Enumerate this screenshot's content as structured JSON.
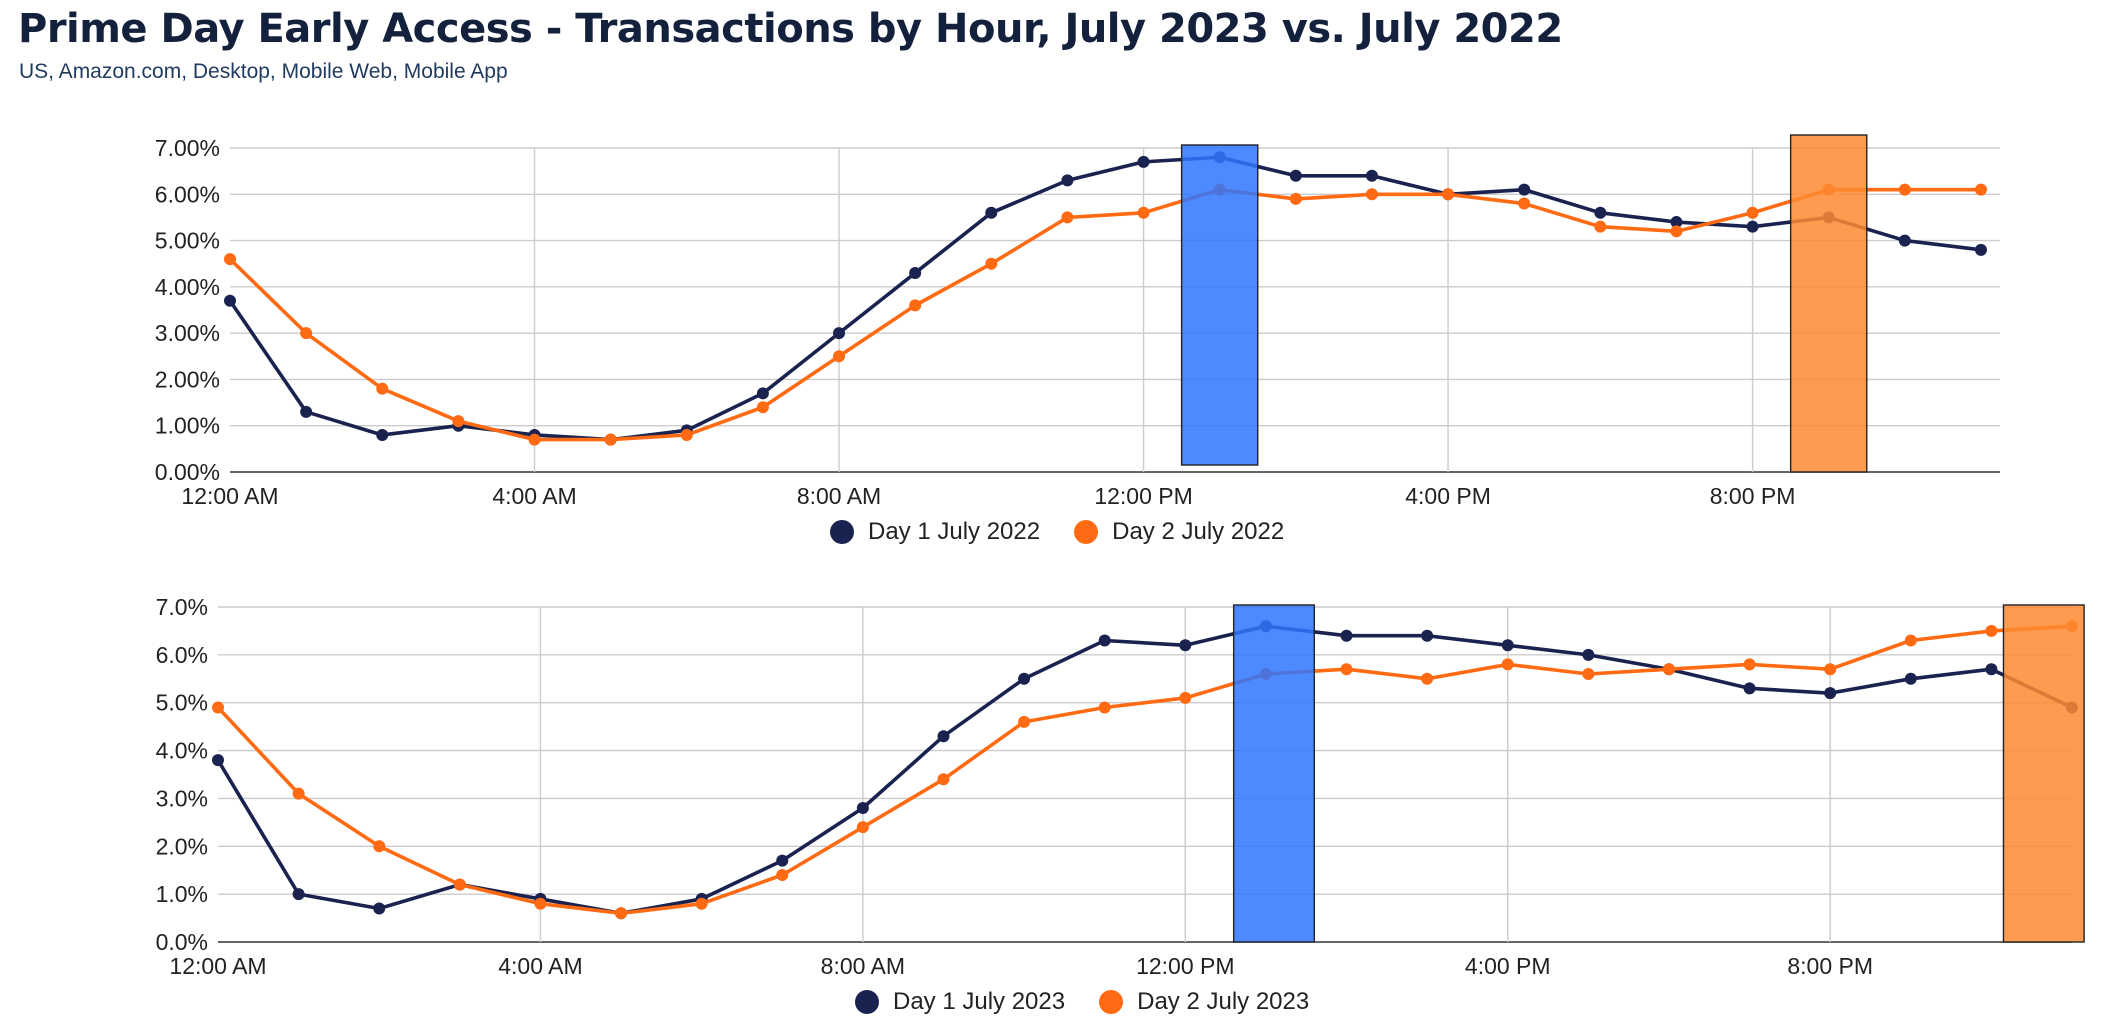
{
  "header": {
    "title": "Prime Day Early Access - Transactions by Hour, July 2023 vs. July 2022",
    "subtitle": "US, Amazon.com, Desktop, Mobile Web, Mobile App"
  },
  "colors": {
    "day1": "#1a2350",
    "day2": "#ff6a13",
    "highlight_day1": "#2f75ff",
    "highlight_day2": "#ff8a33",
    "grid": "#cccccc"
  },
  "chart_data": [
    {
      "type": "line",
      "title": "",
      "xlabel": "",
      "ylabel": "",
      "x": [
        0,
        1,
        2,
        3,
        4,
        5,
        6,
        7,
        8,
        9,
        10,
        11,
        12,
        13,
        14,
        15,
        16,
        17,
        18,
        19,
        20,
        21,
        22,
        23
      ],
      "xtick_positions": [
        0,
        4,
        8,
        12,
        16,
        20
      ],
      "xtick_labels": [
        "12:00 AM",
        "4:00 AM",
        "8:00 AM",
        "12:00 PM",
        "4:00 PM",
        "8:00 PM"
      ],
      "ytick_values": [
        0,
        1,
        2,
        3,
        4,
        5,
        6,
        7
      ],
      "ytick_labels": [
        "0.00%",
        "1.00%",
        "2.00%",
        "3.00%",
        "4.00%",
        "5.00%",
        "6.00%",
        "7.00%"
      ],
      "ylim": [
        0,
        7
      ],
      "grid": true,
      "legend_position": "bottom",
      "series": [
        {
          "name": "Day 1 July 2022",
          "color": "#1a2350",
          "values": [
            3.7,
            1.3,
            0.8,
            1.0,
            0.8,
            0.7,
            0.9,
            1.7,
            3.0,
            4.3,
            5.6,
            6.3,
            6.7,
            6.8,
            6.4,
            6.4,
            6.0,
            6.1,
            5.6,
            5.4,
            5.3,
            5.5,
            5.0,
            4.8
          ]
        },
        {
          "name": "Day 2 July 2022",
          "color": "#ff6a13",
          "values": [
            4.6,
            3.0,
            1.8,
            1.1,
            0.7,
            0.7,
            0.8,
            1.4,
            2.5,
            3.6,
            4.5,
            5.5,
            5.6,
            6.1,
            5.9,
            6.0,
            6.0,
            5.8,
            5.3,
            5.2,
            5.6,
            6.1,
            6.1,
            6.1
          ]
        }
      ],
      "highlights": [
        {
          "color": "#2f75ff",
          "x_start": 12.5,
          "x_end": 13.5
        },
        {
          "color": "#ff8a33",
          "x_start": 20.5,
          "x_end": 21.5
        }
      ]
    },
    {
      "type": "line",
      "title": "",
      "xlabel": "",
      "ylabel": "",
      "x": [
        0,
        1,
        2,
        3,
        4,
        5,
        6,
        7,
        8,
        9,
        10,
        11,
        12,
        13,
        14,
        15,
        16,
        17,
        18,
        19,
        20,
        21,
        22,
        23
      ],
      "xtick_positions": [
        0,
        4,
        8,
        12,
        16,
        20
      ],
      "xtick_labels": [
        "12:00 AM",
        "4:00 AM",
        "8:00 AM",
        "12:00 PM",
        "4:00 PM",
        "8:00 PM"
      ],
      "ytick_values": [
        0,
        1,
        2,
        3,
        4,
        5,
        6,
        7
      ],
      "ytick_labels": [
        "0.0%",
        "1.0%",
        "2.0%",
        "3.0%",
        "4.0%",
        "5.0%",
        "6.0%",
        "7.0%"
      ],
      "ylim": [
        0,
        7
      ],
      "grid": true,
      "legend_position": "bottom",
      "series": [
        {
          "name": "Day 1 July 2023",
          "color": "#1a2350",
          "values": [
            3.8,
            1.0,
            0.7,
            1.2,
            0.9,
            0.6,
            0.9,
            1.7,
            2.8,
            4.3,
            5.5,
            6.3,
            6.2,
            6.6,
            6.4,
            6.4,
            6.2,
            6.0,
            5.7,
            5.3,
            5.2,
            5.5,
            5.7,
            4.9
          ]
        },
        {
          "name": "Day 2 July 2023",
          "color": "#ff6a13",
          "values": [
            4.9,
            3.1,
            2.0,
            1.2,
            0.8,
            0.6,
            0.8,
            1.4,
            2.4,
            3.4,
            4.6,
            4.9,
            5.1,
            5.6,
            5.7,
            5.5,
            5.8,
            5.6,
            5.7,
            5.8,
            5.7,
            6.3,
            6.5,
            6.6
          ]
        }
      ],
      "highlights": [
        {
          "color": "#2f75ff",
          "x_start": 12.6,
          "x_end": 13.6
        },
        {
          "color": "#ff8a33",
          "x_start": 22.15,
          "x_end": 23.15
        }
      ]
    }
  ],
  "legends": {
    "top": [
      {
        "label": "Day 1 July 2022",
        "color": "#1a2350"
      },
      {
        "label": "Day 2 July 2022",
        "color": "#ff6a13"
      }
    ],
    "bottom": [
      {
        "label": "Day 1 July 2023",
        "color": "#1a2350"
      },
      {
        "label": "Day 2 July 2023",
        "color": "#ff6a13"
      }
    ]
  }
}
